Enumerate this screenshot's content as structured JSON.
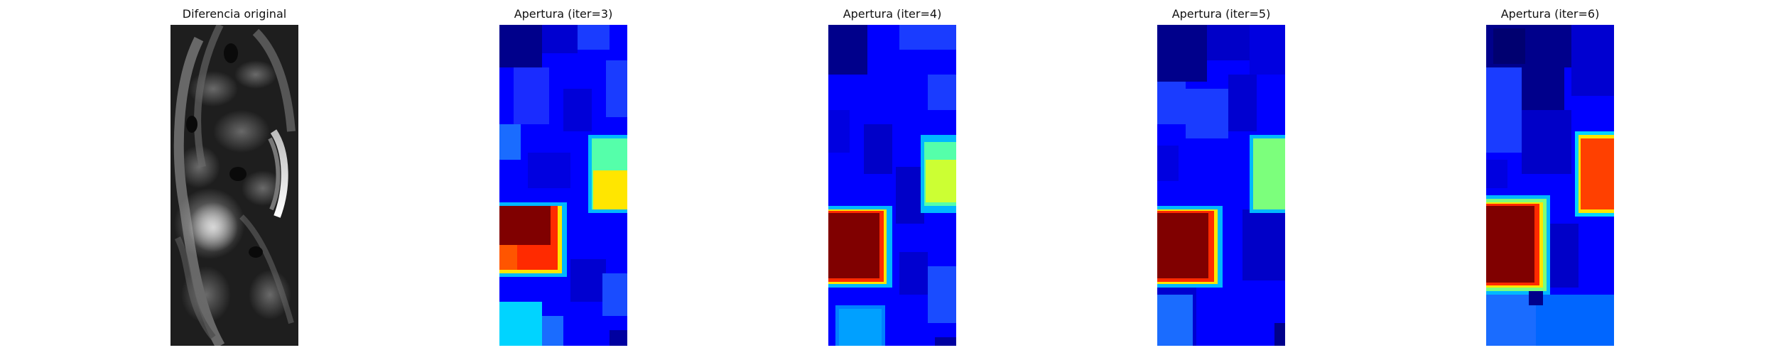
{
  "figure": {
    "panels": [
      {
        "title": "Diferencia original",
        "colormap": "gray"
      },
      {
        "title": "Apertura (iter=3)",
        "colormap": "jet"
      },
      {
        "title": "Apertura (iter=4)",
        "colormap": "jet"
      },
      {
        "title": "Apertura (iter=5)",
        "colormap": "jet"
      },
      {
        "title": "Apertura (iter=6)",
        "colormap": "jet"
      }
    ]
  },
  "colors": {
    "background": "#ffffff",
    "jet_dark_blue": "#00008b",
    "jet_blue": "#0000ff",
    "jet_mid_blue": "#1a3cff",
    "jet_cyan": "#00d4ff",
    "jet_green": "#7cff7c",
    "jet_yellow": "#ffe600",
    "jet_red": "#ff2a00",
    "jet_dark_red": "#800000"
  }
}
